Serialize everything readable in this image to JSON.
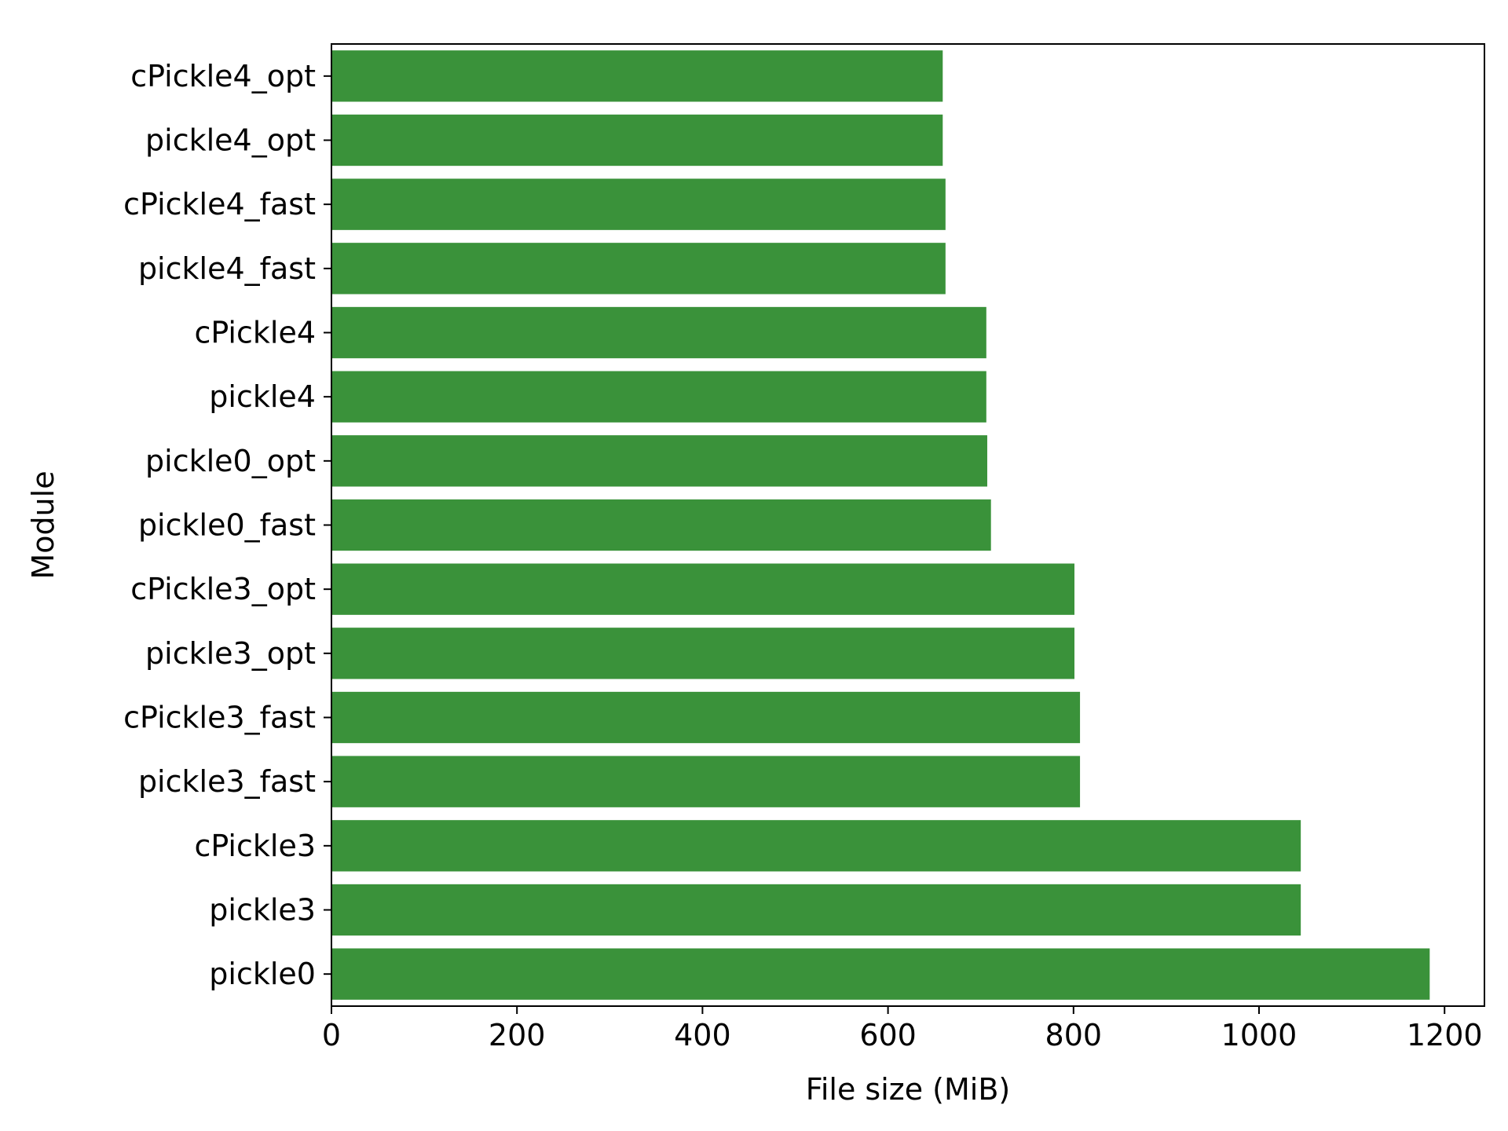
{
  "chart_data": {
    "type": "bar",
    "orientation": "horizontal",
    "title": "",
    "xlabel": "File size (MiB)",
    "ylabel": "Module",
    "xlim": [
      0,
      1243
    ],
    "xticks": [
      0,
      200,
      400,
      600,
      800,
      1000,
      1200
    ],
    "grid": false,
    "legend": "none",
    "bar_color": "#3a923a",
    "categories": [
      "cPickle4_opt",
      "pickle4_opt",
      "cPickle4_fast",
      "pickle4_fast",
      "cPickle4",
      "pickle4",
      "pickle0_opt",
      "pickle0_fast",
      "cPickle3_opt",
      "pickle3_opt",
      "cPickle3_fast",
      "pickle3_fast",
      "cPickle3",
      "pickle3",
      "pickle0"
    ],
    "values": [
      659,
      659,
      662,
      662,
      706,
      706,
      707,
      711,
      801,
      801,
      807,
      807,
      1045,
      1045,
      1184
    ]
  }
}
